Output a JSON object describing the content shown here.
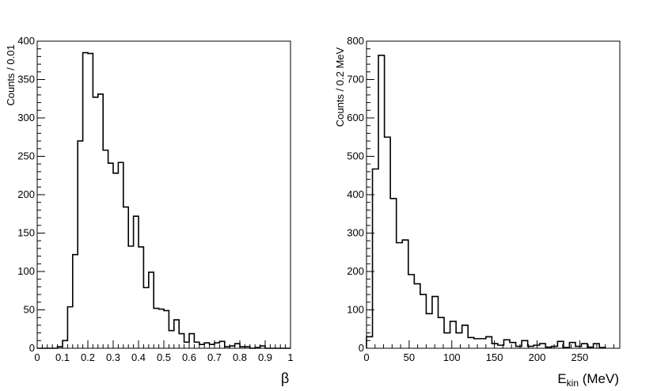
{
  "chart_data": [
    {
      "type": "bar",
      "histogram": true,
      "title": "",
      "xlabel": "β",
      "ylabel": "Counts / 0.01",
      "xlim": [
        0,
        1
      ],
      "ylim": [
        0,
        400
      ],
      "bin_width": 0.02,
      "bin_start": 0.0,
      "values": [
        0,
        0,
        0,
        0,
        2,
        10,
        54,
        122,
        270,
        385,
        384,
        327,
        331,
        258,
        241,
        228,
        242,
        184,
        133,
        172,
        132,
        79,
        99,
        52,
        51,
        49,
        23,
        37,
        19,
        8,
        19,
        8,
        5,
        7,
        5,
        7,
        9,
        2,
        3,
        6,
        2,
        2,
        0,
        1,
        3,
        0,
        0,
        0,
        0,
        0
      ],
      "x_ticks": [
        0,
        0.1,
        0.2,
        0.3,
        0.4,
        0.5,
        0.6,
        0.7,
        0.8,
        0.9,
        1
      ],
      "x_tick_labels": [
        "0",
        "0.1",
        "0.2",
        "0.3",
        "0.4",
        "0.5",
        "0.6",
        "0.7",
        "0.8",
        "0.9",
        "1"
      ],
      "y_ticks": [
        0,
        50,
        100,
        150,
        200,
        250,
        300,
        350,
        400
      ],
      "y_tick_labels": [
        "0",
        "50",
        "100",
        "150",
        "200",
        "250",
        "300",
        "350",
        "400"
      ],
      "grid": false,
      "legend": "none"
    },
    {
      "type": "bar",
      "histogram": true,
      "title": "",
      "xlabel": "E",
      "xlabel_sub": "kin",
      "xlabel_unit": " (MeV)",
      "ylabel": "Counts / 0.2 MeV",
      "xlim": [
        0,
        297
      ],
      "ylim": [
        0,
        800
      ],
      "bin_width": 7,
      "bin_start": 0,
      "values": [
        30,
        467,
        763,
        550,
        390,
        275,
        282,
        192,
        168,
        140,
        90,
        135,
        80,
        40,
        70,
        40,
        60,
        28,
        25,
        25,
        30,
        12,
        8,
        22,
        15,
        5,
        20,
        5,
        8,
        12,
        3,
        5,
        18,
        2,
        15,
        5,
        12,
        3,
        12,
        2
      ],
      "x_ticks": [
        0,
        50,
        100,
        150,
        200,
        250
      ],
      "x_tick_labels": [
        "0",
        "50",
        "100",
        "150",
        "200",
        "250"
      ],
      "y_ticks": [
        0,
        100,
        200,
        300,
        400,
        500,
        600,
        700,
        800
      ],
      "y_tick_labels": [
        "0",
        "100",
        "200",
        "300",
        "400",
        "500",
        "600",
        "700",
        "800"
      ],
      "grid": false,
      "legend": "none"
    }
  ]
}
